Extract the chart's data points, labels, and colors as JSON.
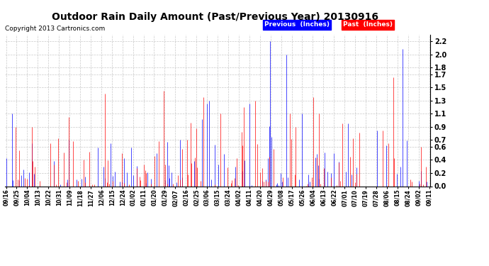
{
  "title": "Outdoor Rain Daily Amount (Past/Previous Year) 20130916",
  "copyright": "Copyright 2013 Cartronics.com",
  "legend_previous": "Previous  (Inches)",
  "legend_past": "Past  (Inches)",
  "yticks": [
    0.0,
    0.2,
    0.4,
    0.6,
    0.7,
    0.9,
    1.1,
    1.3,
    1.5,
    1.7,
    1.8,
    2.0,
    2.2
  ],
  "ylim": [
    0.0,
    2.3
  ],
  "background_color": "#FFFFFF",
  "grid_color": "#BBBBBB",
  "xtick_labels": [
    "09/16",
    "09/25",
    "10/04",
    "10/13",
    "10/22",
    "10/31",
    "11/09",
    "11/18",
    "11/27",
    "12/06",
    "12/15",
    "12/24",
    "01/02",
    "01/11",
    "01/20",
    "01/29",
    "02/07",
    "02/16",
    "02/25",
    "03/06",
    "03/15",
    "03/24",
    "04/02",
    "04/11",
    "04/20",
    "04/29",
    "05/08",
    "05/17",
    "05/26",
    "06/04",
    "06/13",
    "06/22",
    "07/01",
    "07/10",
    "07/19",
    "07/28",
    "08/06",
    "08/15",
    "08/24",
    "09/02",
    "09/11"
  ],
  "n_days": 366,
  "title_fontsize": 10,
  "copyright_fontsize": 6.5,
  "ytick_fontsize": 7,
  "xtick_fontsize": 5.5
}
